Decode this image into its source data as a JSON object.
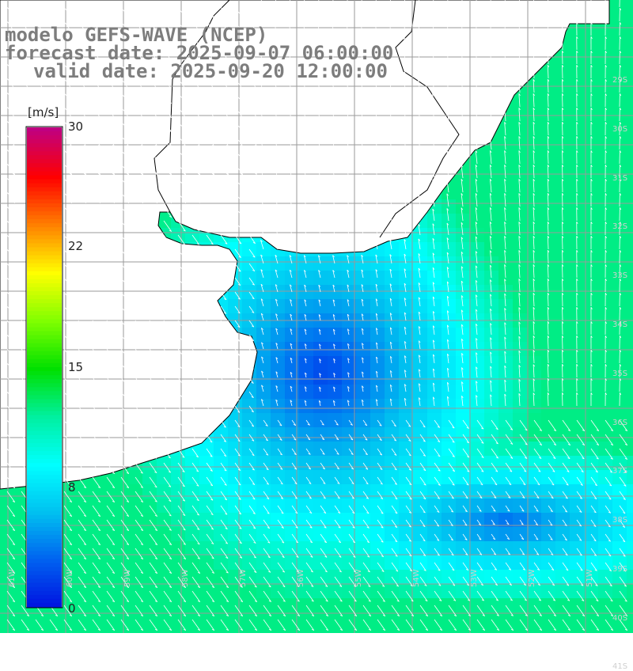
{
  "title": {
    "line1": "modelo GEFS-WAVE (NCEP)",
    "line2": "forecast date: 2025-09-07 06:00:00",
    "line3": "valid date: 2025-09-20 12:00:00"
  },
  "colorbar": {
    "unit": "[m/s]",
    "ticks": [
      "30",
      "22",
      "15",
      "8",
      "0"
    ],
    "tick_values": [
      30,
      22,
      15,
      8,
      0
    ],
    "range": [
      0,
      30
    ],
    "colors": [
      "#0010e0",
      "#0060f0",
      "#00c0f0",
      "#00ffff",
      "#00f0a0",
      "#00e000",
      "#80ff00",
      "#ffff00",
      "#ff8000",
      "#ff0000",
      "#c00080"
    ]
  },
  "map": {
    "variable": "wind speed and direction",
    "lon_labels": [
      "61W",
      "60W",
      "59W",
      "58W",
      "57W",
      "56W",
      "55W",
      "54W",
      "53W",
      "52W",
      "51W"
    ],
    "lat_labels": [
      "29S",
      "30S",
      "31S",
      "32S",
      "33S",
      "34S",
      "35S",
      "36S",
      "37S",
      "38S",
      "39S",
      "40S",
      "41S"
    ],
    "lon_range": [
      -61.5,
      -50.5
    ],
    "lat_range": [
      -41.5,
      -29.5
    ],
    "land_color": "#ffffff",
    "grid_color": "#9a9a9a"
  }
}
